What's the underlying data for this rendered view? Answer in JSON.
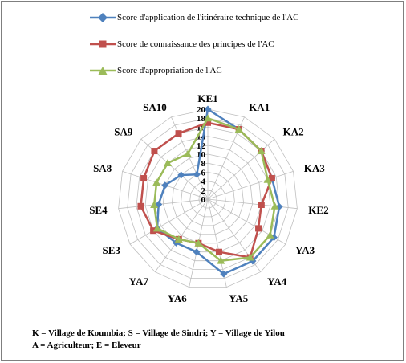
{
  "chart_data": {
    "type": "radar",
    "categories": [
      "KE1",
      "KA1",
      "KA2",
      "KA3",
      "KE2",
      "YA3",
      "YA4",
      "YA5",
      "YA6",
      "YA7",
      "SE3",
      "SE4",
      "SA8",
      "SA9",
      "SA10"
    ],
    "radial_ticks": [
      0,
      2,
      4,
      6,
      8,
      10,
      12,
      14,
      16,
      18,
      20
    ],
    "rmax": 20,
    "series": [
      {
        "name": "Score d'application de l'itinéraire  technique de l'AC",
        "color": "#4f81bd",
        "marker": "diamond",
        "values": [
          20,
          17,
          16,
          15,
          16,
          17,
          17,
          17,
          12,
          12,
          13,
          11,
          10,
          8,
          6
        ]
      },
      {
        "name": "Score de connaissance des principes  de l'AC",
        "color": "#c0504d",
        "marker": "square",
        "values": [
          17,
          17,
          16,
          15,
          12,
          13,
          16,
          12,
          10,
          11,
          14,
          15,
          15,
          16,
          16
        ]
      },
      {
        "name": "Score d'appropriation de l'AC",
        "color": "#9bbb59",
        "marker": "triangle",
        "values": [
          18,
          17,
          16,
          14,
          15,
          16,
          16,
          14,
          10,
          11,
          13,
          12,
          12,
          12,
          11
        ]
      }
    ],
    "legend": "top",
    "grid": true
  },
  "footnote": {
    "line1": "K = Village  de Koumbia; S = Village  de Sindri;  Y = Village  de Yilou",
    "line2": "A = Agriculteur;  E = Eleveur"
  }
}
